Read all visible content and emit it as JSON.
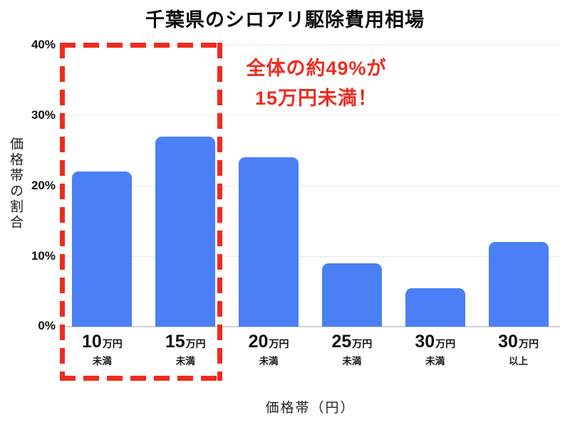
{
  "title": "千葉県のシロアリ駆除費用相場",
  "annotation": {
    "line1": "全体の約49%が",
    "line2": "15万円未満！",
    "color": "#ee2b1e"
  },
  "y_axis": {
    "title": "価格帯の割合",
    "ticks": [
      "40%",
      "30%",
      "20%",
      "10%",
      "0%"
    ]
  },
  "x_axis": {
    "title": "価格帯（円）",
    "labels": [
      {
        "num": "10",
        "unit": "万円",
        "qualifier": "未満"
      },
      {
        "num": "15",
        "unit": "万円",
        "qualifier": "未満"
      },
      {
        "num": "20",
        "unit": "万円",
        "qualifier": "未満"
      },
      {
        "num": "25",
        "unit": "万円",
        "qualifier": "未満"
      },
      {
        "num": "30",
        "unit": "万円",
        "qualifier": "未満"
      },
      {
        "num": "30",
        "unit": "万円",
        "qualifier": "以上"
      }
    ]
  },
  "chart_data": {
    "type": "bar",
    "title": "千葉県のシロアリ駆除費用相場",
    "categories": [
      "10万円未満",
      "15万円未満",
      "20万円未満",
      "25万円未満",
      "30万円未満",
      "30万円以上"
    ],
    "values": [
      22,
      27,
      24,
      9,
      5.5,
      12
    ],
    "xlabel": "価格帯（円）",
    "ylabel": "価格帯の割合",
    "ylim": [
      0,
      40
    ],
    "ytick_step": 10,
    "grid": true,
    "legend": false,
    "bar_color": "#4b7ff5",
    "annotation_text": "全体の約49%が15万円未満！",
    "highlight": "red dashed box around first two bars (10万円未満, 15万円未満)"
  }
}
